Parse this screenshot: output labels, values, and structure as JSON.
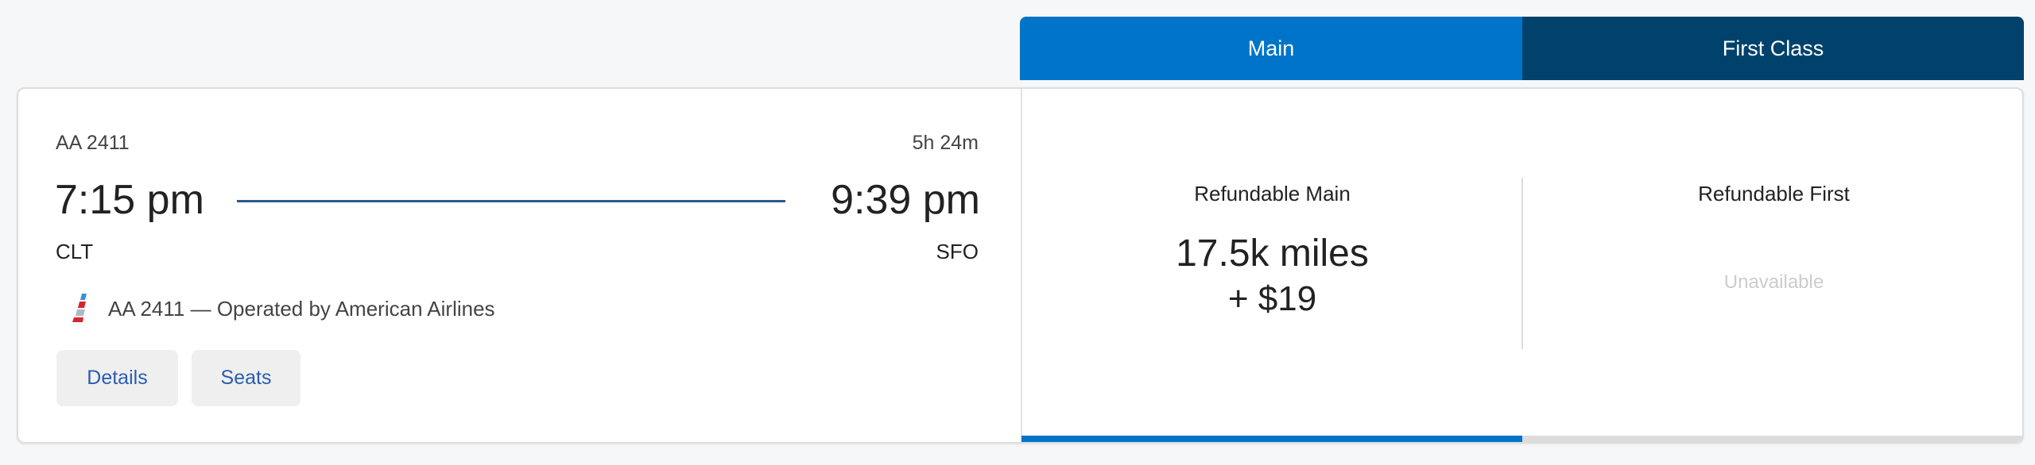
{
  "tabs": [
    {
      "label": "Main",
      "color": "#0074c8",
      "active": true
    },
    {
      "label": "First Class",
      "color": "#00426c",
      "active": false
    }
  ],
  "flight": {
    "number": "AA 2411",
    "duration": "5h 24m",
    "depart_time": "7:15 pm",
    "arrive_time": "9:39 pm",
    "origin": "CLT",
    "destination": "SFO",
    "operated": "AA 2411 — Operated by American Airlines",
    "logo_icon": "american-airlines-tail-icon"
  },
  "buttons": {
    "details": "Details",
    "seats": "Seats"
  },
  "fares": [
    {
      "name": "Refundable Main",
      "miles": "17.5k miles",
      "cash": "+ $19"
    },
    {
      "name": "Refundable First",
      "status": "Unavailable"
    }
  ]
}
